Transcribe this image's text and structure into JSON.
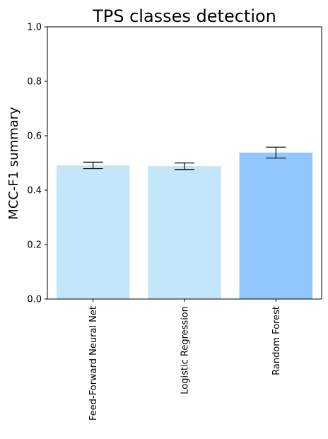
{
  "chart_data": {
    "type": "bar",
    "title": "TPS classes detection",
    "xlabel": "",
    "ylabel": "MCC-F1 summary",
    "categories": [
      "Feed-Forward Neural Net",
      "Logistic Regression",
      "Random Forest"
    ],
    "values": [
      0.491,
      0.488,
      0.538
    ],
    "errors": [
      0.012,
      0.012,
      0.02
    ],
    "ylim": [
      0,
      1.0
    ],
    "yticks": [
      0.0,
      0.2,
      0.4,
      0.6,
      0.8,
      1.0
    ],
    "ytick_labels": [
      "0.0",
      "0.2",
      "0.4",
      "0.6",
      "0.8",
      "1.0"
    ],
    "bar_colors": [
      "#c4e6fb",
      "#c4e6fb",
      "#8fc7fd"
    ],
    "error_bar_color": "#000000",
    "grid": false,
    "legend": "none"
  }
}
